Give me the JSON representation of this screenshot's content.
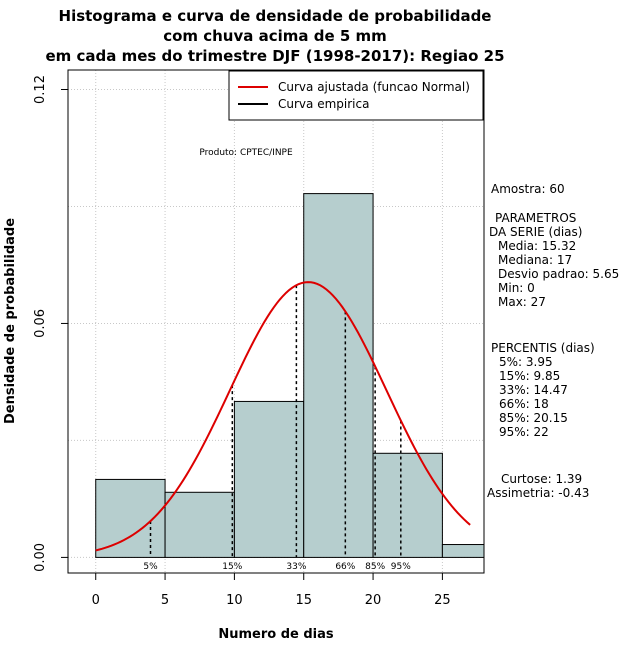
{
  "colors": {
    "bar_fill": "#b6cece",
    "curve": "#dd0000",
    "grid": "#c8c8c8",
    "text": "#000000"
  },
  "chart_data": {
    "type": "bar",
    "title_lines": [
      "Histograma e curva de densidade de probabilidade",
      "com chuva acima de 5 mm",
      "em cada mes do trimestre DJF (1998-2017): Regiao 25"
    ],
    "xlabel": "Numero de dias",
    "ylabel": "Densidade de probabilidade",
    "xlim": [
      -2,
      28
    ],
    "ylim": [
      -0.004,
      0.125
    ],
    "x_ticks": [
      "0",
      "5",
      "10",
      "15",
      "20",
      "25"
    ],
    "y_ticks": [
      "0.00",
      "0.06",
      "0.12"
    ],
    "grid": true,
    "bins": [
      {
        "x0": 0,
        "x1": 5,
        "density": 0.02
      },
      {
        "x0": 5,
        "x1": 10,
        "density": 0.0167
      },
      {
        "x0": 10,
        "x1": 15,
        "density": 0.04
      },
      {
        "x0": 15,
        "x1": 20,
        "density": 0.0933
      },
      {
        "x0": 20,
        "x1": 25,
        "density": 0.0267
      },
      {
        "x0": 25,
        "x1": 28,
        "density": 0.0033
      }
    ],
    "normal_fit": {
      "mean": 15.32,
      "sd": 5.65,
      "x_range": [
        0,
        27
      ]
    },
    "legend": [
      {
        "label": "Curva ajustada (funcao Normal)",
        "color": "#dd0000"
      },
      {
        "label": "Curva empirica",
        "color": "#000000"
      }
    ],
    "legend_position": "top-right",
    "watermark": "Produto: CPTEC/INPE",
    "percentile_lines": [
      {
        "label": "5%",
        "x": 3.95
      },
      {
        "label": "15%",
        "x": 9.85
      },
      {
        "label": "33%",
        "x": 14.47
      },
      {
        "label": "66%",
        "x": 18
      },
      {
        "label": "85%",
        "x": 20.15
      },
      {
        "label": "95%",
        "x": 22
      }
    ]
  },
  "stats": {
    "amostra": "Amostra: 60",
    "parametros_title_1": "PARAMETROS",
    "parametros_title_2": "DA SERIE (dias)",
    "media": "Media: 15.32",
    "mediana": "Mediana: 17",
    "desvio": "Desvio padrao: 5.65",
    "min": "Min: 0",
    "max": "Max: 27",
    "percentis_title": "PERCENTIS (dias)",
    "p5": "5%: 3.95",
    "p15": "15%: 9.85",
    "p33": "33%: 14.47",
    "p66": "66%: 18",
    "p85": "85%: 20.15",
    "p95": "95%: 22",
    "curtose": "Curtose: 1.39",
    "assimetria": "Assimetria: -0.43"
  }
}
